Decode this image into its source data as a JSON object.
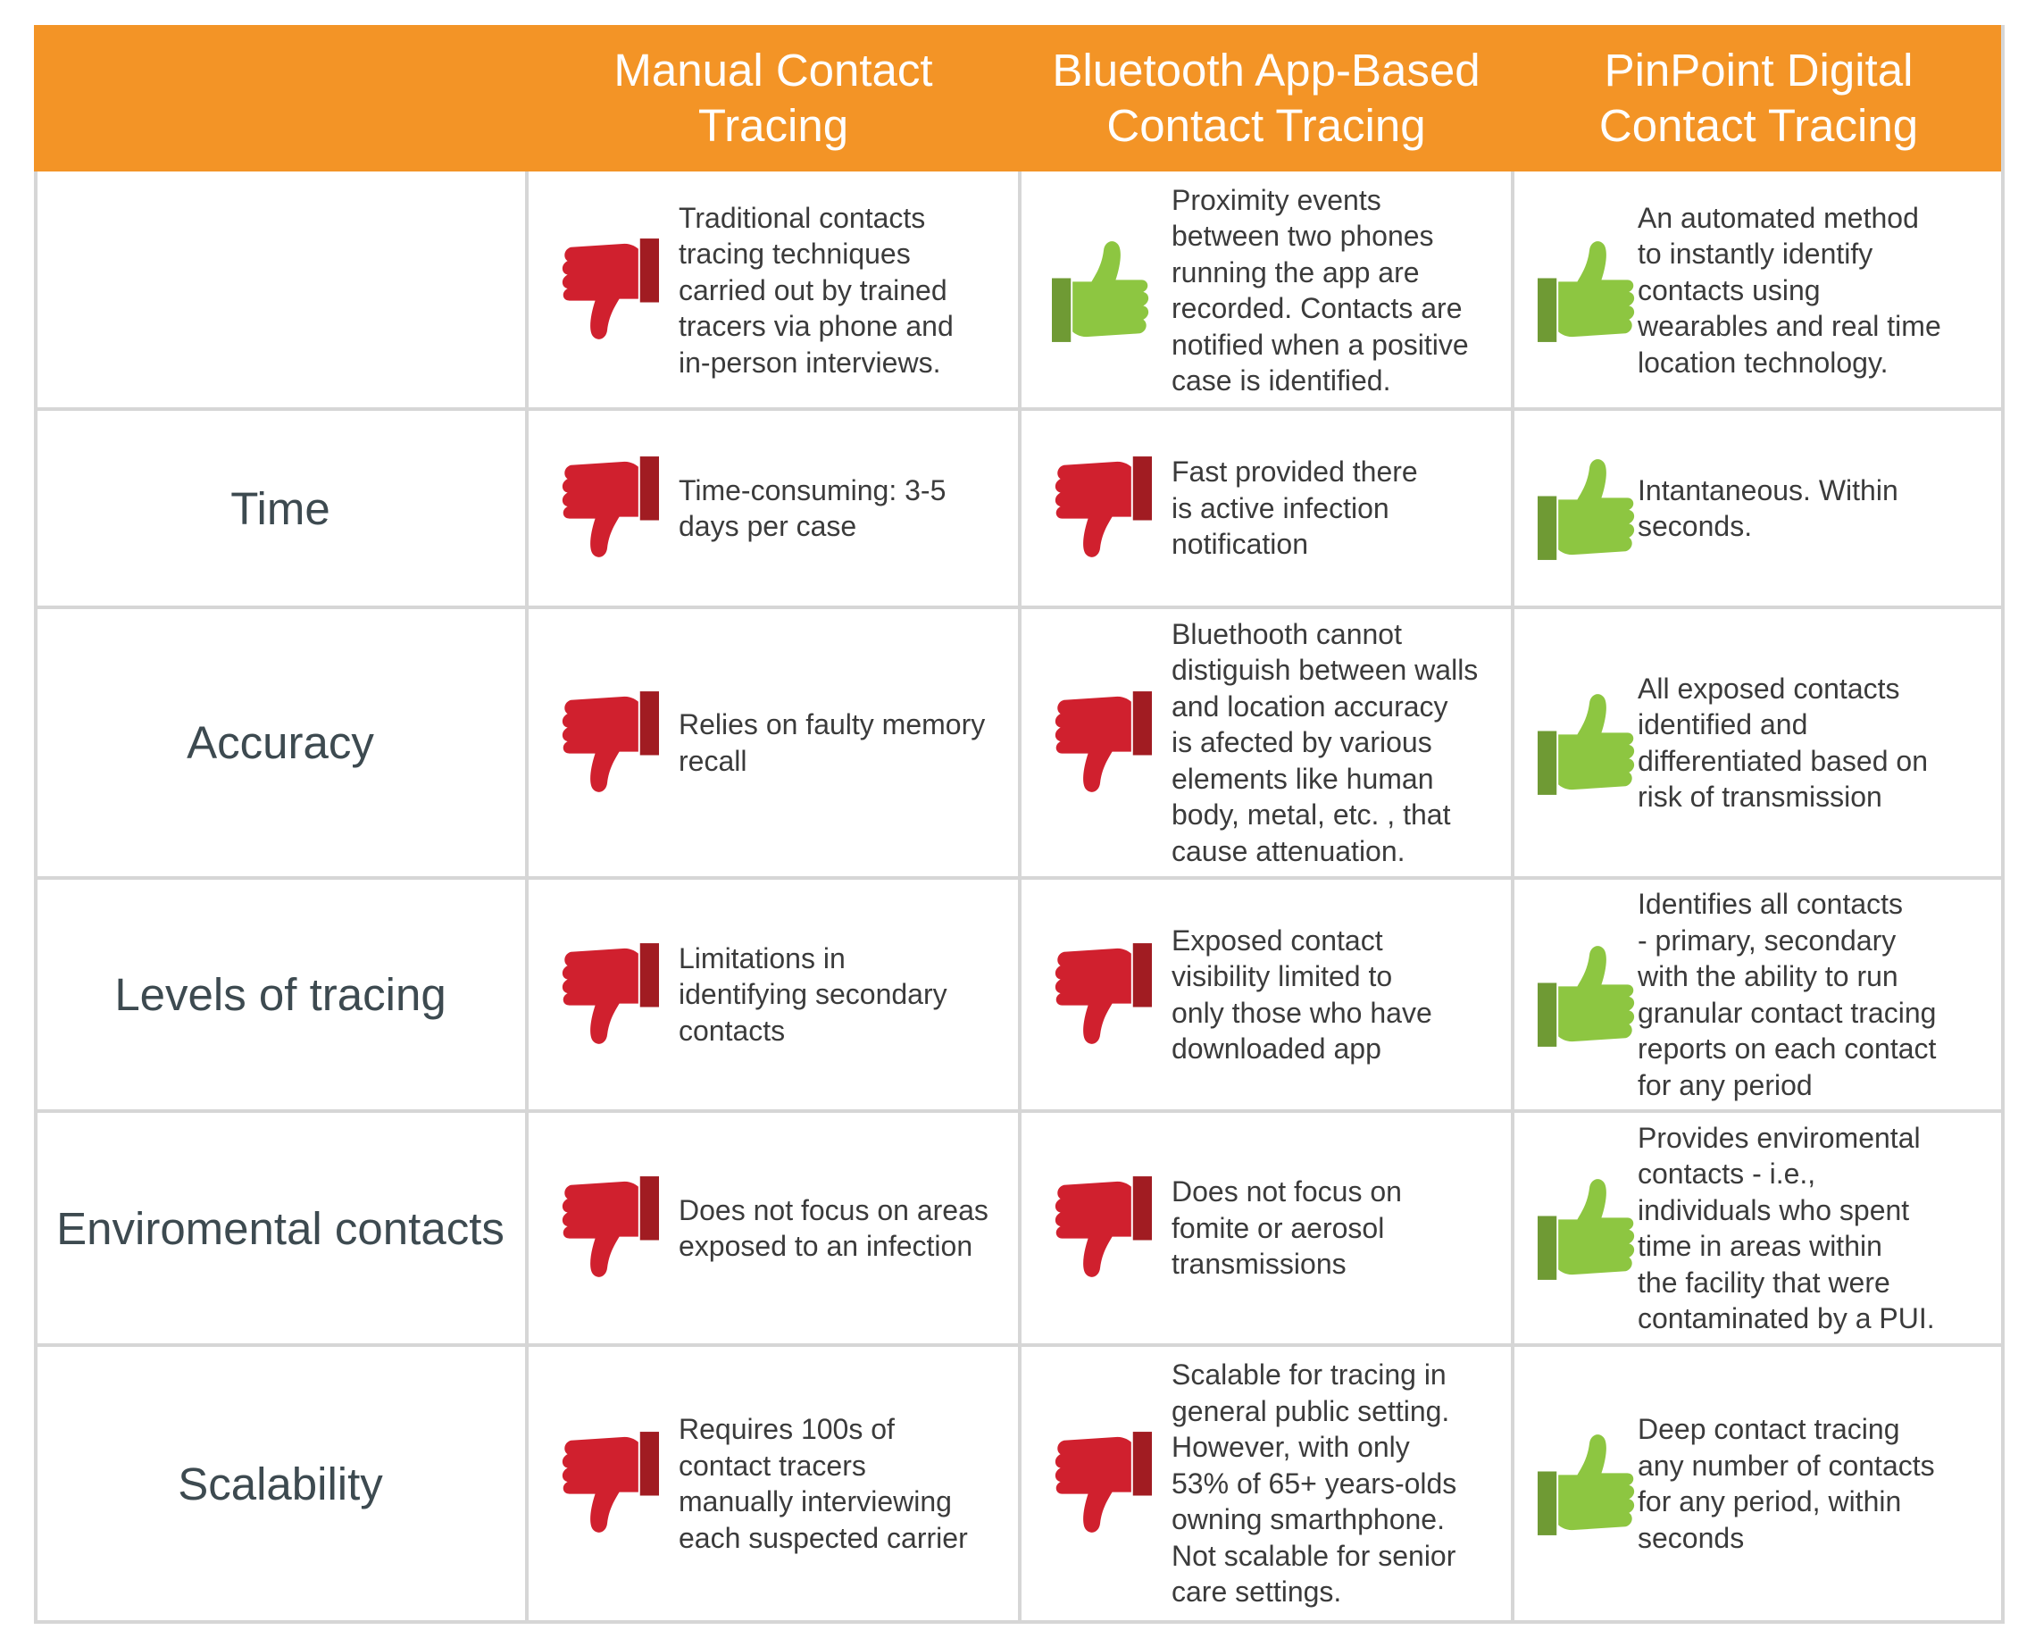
{
  "colors": {
    "header": "#F39426",
    "down": "#D0202E",
    "up": "#8DC641",
    "grid": "#D6D6D6"
  },
  "header": {
    "col1": [
      "Manual Contact",
      "Tracing"
    ],
    "col2": [
      "Bluetooth App-Based",
      "Contact Tracing"
    ],
    "col3": [
      "PinPoint Digital",
      "Contact Tracing"
    ]
  },
  "rows": [
    {
      "label": "",
      "cells": [
        {
          "icon": "thumbs-down-icon",
          "text": "Traditional contacts\ntracing techniques\ncarried out by trained\ntracers via phone and\nin-person interviews."
        },
        {
          "icon": "thumbs-up-icon",
          "text": "Proximity events\nbetween two phones\nrunning the app are\nrecorded. Contacts are\nnotified when a positive\ncase is identified."
        },
        {
          "icon": "thumbs-up-icon",
          "text": "An automated method\nto instantly identify\ncontacts using\nwearables and real time\nlocation technology."
        }
      ]
    },
    {
      "label": "Time",
      "cells": [
        {
          "icon": "thumbs-down-icon",
          "text": "Time-consuming: 3-5\ndays per case"
        },
        {
          "icon": "thumbs-down-icon",
          "text": "Fast provided there\nis active infection\nnotification"
        },
        {
          "icon": "thumbs-up-icon",
          "text": "Intantaneous. Within\nseconds."
        }
      ]
    },
    {
      "label": "Accuracy",
      "cells": [
        {
          "icon": "thumbs-down-icon",
          "text": "Relies on faulty memory\nrecall"
        },
        {
          "icon": "thumbs-down-icon",
          "text": "Bluethooth cannot\ndistiguish between walls\nand location accuracy\nis afected by various\nelements like human\nbody, metal, etc. , that\ncause attenuation."
        },
        {
          "icon": "thumbs-up-icon",
          "text": "All exposed contacts\nidentified and\ndifferentiated based on\nrisk of transmission"
        }
      ]
    },
    {
      "label": "Levels of tracing",
      "cells": [
        {
          "icon": "thumbs-down-icon",
          "text": "Limitations in\nidentifying secondary\ncontacts"
        },
        {
          "icon": "thumbs-down-icon",
          "text": "Exposed contact\nvisibility limited to\nonly those who have\ndownloaded app"
        },
        {
          "icon": "thumbs-up-icon",
          "text": "Identifies all contacts\n- primary, secondary\nwith the ability to run\ngranular contact tracing\nreports on each contact\nfor any period"
        }
      ]
    },
    {
      "label": "Enviromental contacts",
      "cells": [
        {
          "icon": "thumbs-down-icon",
          "text": "Does not focus on areas\nexposed to an infection"
        },
        {
          "icon": "thumbs-down-icon",
          "text": "Does not focus on\nfomite or aerosol\ntransmissions"
        },
        {
          "icon": "thumbs-up-icon",
          "text": "Provides enviromental\ncontacts - i.e.,\nindividuals who spent\ntime in areas within\nthe facility that were\ncontaminated by a PUI."
        }
      ]
    },
    {
      "label": "Scalability",
      "cells": [
        {
          "icon": "thumbs-down-icon",
          "text": "Requires 100s of\ncontact tracers\nmanually interviewing\neach suspected carrier"
        },
        {
          "icon": "thumbs-down-icon",
          "text": "Scalable for tracing in\ngeneral public setting.\nHowever, with only\n53% of 65+ years-olds\nowning smarthphone.\nNot scalable for senior\ncare settings."
        },
        {
          "icon": "thumbs-up-icon",
          "text": "Deep contact tracing\nany number of contacts\nfor any period, within\nseconds"
        }
      ]
    }
  ]
}
